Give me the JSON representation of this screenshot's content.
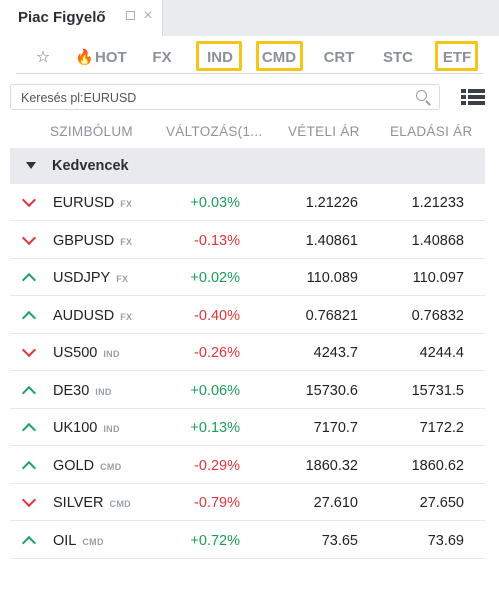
{
  "window": {
    "title": "Piac Figyelő"
  },
  "filters": [
    {
      "id": "fav",
      "label": "",
      "icon": "star-icon"
    },
    {
      "id": "hot",
      "label": "HOT",
      "icon": "flame-icon"
    },
    {
      "id": "fx",
      "label": "FX"
    },
    {
      "id": "ind",
      "label": "IND",
      "highlighted": true
    },
    {
      "id": "cmd",
      "label": "CMD",
      "highlighted": true
    },
    {
      "id": "crt",
      "label": "CRT"
    },
    {
      "id": "stc",
      "label": "STC"
    },
    {
      "id": "etf",
      "label": "ETF",
      "highlighted": true
    }
  ],
  "search": {
    "placeholder": "Keresés pl:EURUSD",
    "value": ""
  },
  "columns": {
    "symbol": "SZIMBÓLUM",
    "change": "VÁLTOZÁS(1...",
    "bid": "VÉTELI ÁR",
    "ask": "ELADÁSI ÁR"
  },
  "group": {
    "label": "Kedvencek"
  },
  "rows": [
    {
      "symbol": "EURUSD",
      "badge": "FX",
      "direction": "down",
      "change": "+0.03%",
      "change_sign": "pos",
      "bid": "1.21226",
      "ask": "1.21233"
    },
    {
      "symbol": "GBPUSD",
      "badge": "FX",
      "direction": "down",
      "change": "-0.13%",
      "change_sign": "neg",
      "bid": "1.40861",
      "ask": "1.40868"
    },
    {
      "symbol": "USDJPY",
      "badge": "FX",
      "direction": "up",
      "change": "+0.02%",
      "change_sign": "pos",
      "bid": "110.089",
      "ask": "110.097"
    },
    {
      "symbol": "AUDUSD",
      "badge": "FX",
      "direction": "up",
      "change": "-0.40%",
      "change_sign": "neg",
      "bid": "0.76821",
      "ask": "0.76832"
    },
    {
      "symbol": "US500",
      "badge": "IND",
      "direction": "down",
      "change": "-0.26%",
      "change_sign": "neg",
      "bid": "4243.7",
      "ask": "4244.4"
    },
    {
      "symbol": "DE30",
      "badge": "IND",
      "direction": "up",
      "change": "+0.06%",
      "change_sign": "pos",
      "bid": "15730.6",
      "ask": "15731.5"
    },
    {
      "symbol": "UK100",
      "badge": "IND",
      "direction": "up",
      "change": "+0.13%",
      "change_sign": "pos",
      "bid": "7170.7",
      "ask": "7172.2"
    },
    {
      "symbol": "GOLD",
      "badge": "CMD",
      "direction": "up",
      "change": "-0.29%",
      "change_sign": "neg",
      "bid": "1860.32",
      "ask": "1860.62"
    },
    {
      "symbol": "SILVER",
      "badge": "CMD",
      "direction": "down",
      "change": "-0.79%",
      "change_sign": "neg",
      "bid": "27.610",
      "ask": "27.650"
    },
    {
      "symbol": "OIL",
      "badge": "CMD",
      "direction": "up",
      "change": "+0.72%",
      "change_sign": "pos",
      "bid": "73.65",
      "ask": "73.69"
    }
  ],
  "colors": {
    "up": "#22a06b",
    "down": "#e0363a",
    "highlight": "#f5c518"
  }
}
